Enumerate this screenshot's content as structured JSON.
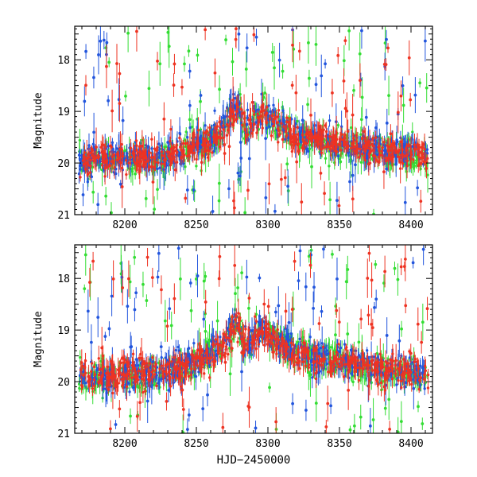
{
  "chart_data": [
    {
      "type": "scatter",
      "panel": "top",
      "title": "",
      "xlabel": "",
      "ylabel": "Magnitude",
      "xlim": [
        8165,
        8415
      ],
      "ylim": [
        21.0,
        17.35
      ],
      "y_inverted": true,
      "x_ticks": [
        8200,
        8250,
        8300,
        8350,
        8400
      ],
      "x_tick_labels": [
        "8200",
        "8250",
        "8300",
        "8350",
        "8400"
      ],
      "y_ticks": [
        18,
        19,
        20,
        21
      ],
      "y_tick_labels": [
        "18",
        "19",
        "20",
        "21"
      ],
      "grid": false,
      "legend": "none",
      "series": [
        {
          "color": "#33dd33",
          "error_bars": true,
          "baseline": [
            [
              8165,
              19.95
            ],
            [
              8230,
              19.9
            ],
            [
              8265,
              19.5
            ],
            [
              8275,
              19.0
            ],
            [
              8280,
              18.85
            ],
            [
              8283,
              19.4
            ],
            [
              8295,
              19.0
            ],
            [
              8320,
              19.5
            ],
            [
              8360,
              19.75
            ],
            [
              8415,
              19.9
            ]
          ],
          "outliers_min": 17.35,
          "outliers_max": 21.0
        },
        {
          "color": "#2255dd",
          "error_bars": true,
          "baseline": [
            [
              8165,
              19.95
            ],
            [
              8230,
              19.85
            ],
            [
              8265,
              19.45
            ],
            [
              8275,
              18.95
            ],
            [
              8280,
              18.9
            ],
            [
              8283,
              19.4
            ],
            [
              8295,
              19.0
            ],
            [
              8320,
              19.45
            ],
            [
              8360,
              19.7
            ],
            [
              8415,
              19.85
            ]
          ],
          "outliers_min": 17.35,
          "outliers_max": 21.0
        },
        {
          "color": "#ee3322",
          "error_bars": true,
          "baseline": [
            [
              8165,
              19.9
            ],
            [
              8230,
              19.85
            ],
            [
              8265,
              19.5
            ],
            [
              8275,
              19.05
            ],
            [
              8280,
              18.9
            ],
            [
              8283,
              19.35
            ],
            [
              8295,
              19.05
            ],
            [
              8320,
              19.5
            ],
            [
              8360,
              19.7
            ],
            [
              8415,
              19.9
            ]
          ],
          "outliers_min": 17.35,
          "outliers_max": 21.0
        }
      ]
    },
    {
      "type": "scatter",
      "panel": "bottom",
      "title": "",
      "xlabel": "HJD−2450000",
      "ylabel": "Magnitude",
      "xlim": [
        8165,
        8415
      ],
      "ylim": [
        21.0,
        17.35
      ],
      "y_inverted": true,
      "x_ticks": [
        8200,
        8250,
        8300,
        8350,
        8400
      ],
      "x_tick_labels": [
        "8200",
        "8250",
        "8300",
        "8350",
        "8400"
      ],
      "y_ticks": [
        18,
        19,
        20,
        21
      ],
      "y_tick_labels": [
        "18",
        "19",
        "20",
        "21"
      ],
      "grid": false,
      "legend": "none",
      "series": [
        {
          "color": "#33dd33",
          "error_bars": true,
          "baseline": [
            [
              8165,
              19.95
            ],
            [
              8230,
              19.85
            ],
            [
              8265,
              19.4
            ],
            [
              8275,
              18.95
            ],
            [
              8280,
              18.85
            ],
            [
              8283,
              19.35
            ],
            [
              8295,
              19.0
            ],
            [
              8320,
              19.45
            ],
            [
              8360,
              19.7
            ],
            [
              8415,
              19.9
            ]
          ],
          "outliers_min": 17.35,
          "outliers_max": 21.0
        },
        {
          "color": "#2255dd",
          "error_bars": true,
          "baseline": [
            [
              8165,
              19.95
            ],
            [
              8230,
              19.8
            ],
            [
              8265,
              19.4
            ],
            [
              8275,
              18.95
            ],
            [
              8280,
              18.9
            ],
            [
              8283,
              19.35
            ],
            [
              8295,
              19.0
            ],
            [
              8320,
              19.45
            ],
            [
              8360,
              19.65
            ],
            [
              8415,
              19.85
            ]
          ],
          "outliers_min": 17.35,
          "outliers_max": 21.0
        },
        {
          "color": "#ee3322",
          "error_bars": true,
          "baseline": [
            [
              8165,
              19.9
            ],
            [
              8230,
              19.8
            ],
            [
              8265,
              19.45
            ],
            [
              8275,
              19.0
            ],
            [
              8280,
              18.85
            ],
            [
              8283,
              19.3
            ],
            [
              8295,
              19.05
            ],
            [
              8320,
              19.5
            ],
            [
              8360,
              19.7
            ],
            [
              8415,
              19.9
            ]
          ],
          "outliers_min": 17.35,
          "outliers_max": 21.0
        }
      ]
    }
  ]
}
